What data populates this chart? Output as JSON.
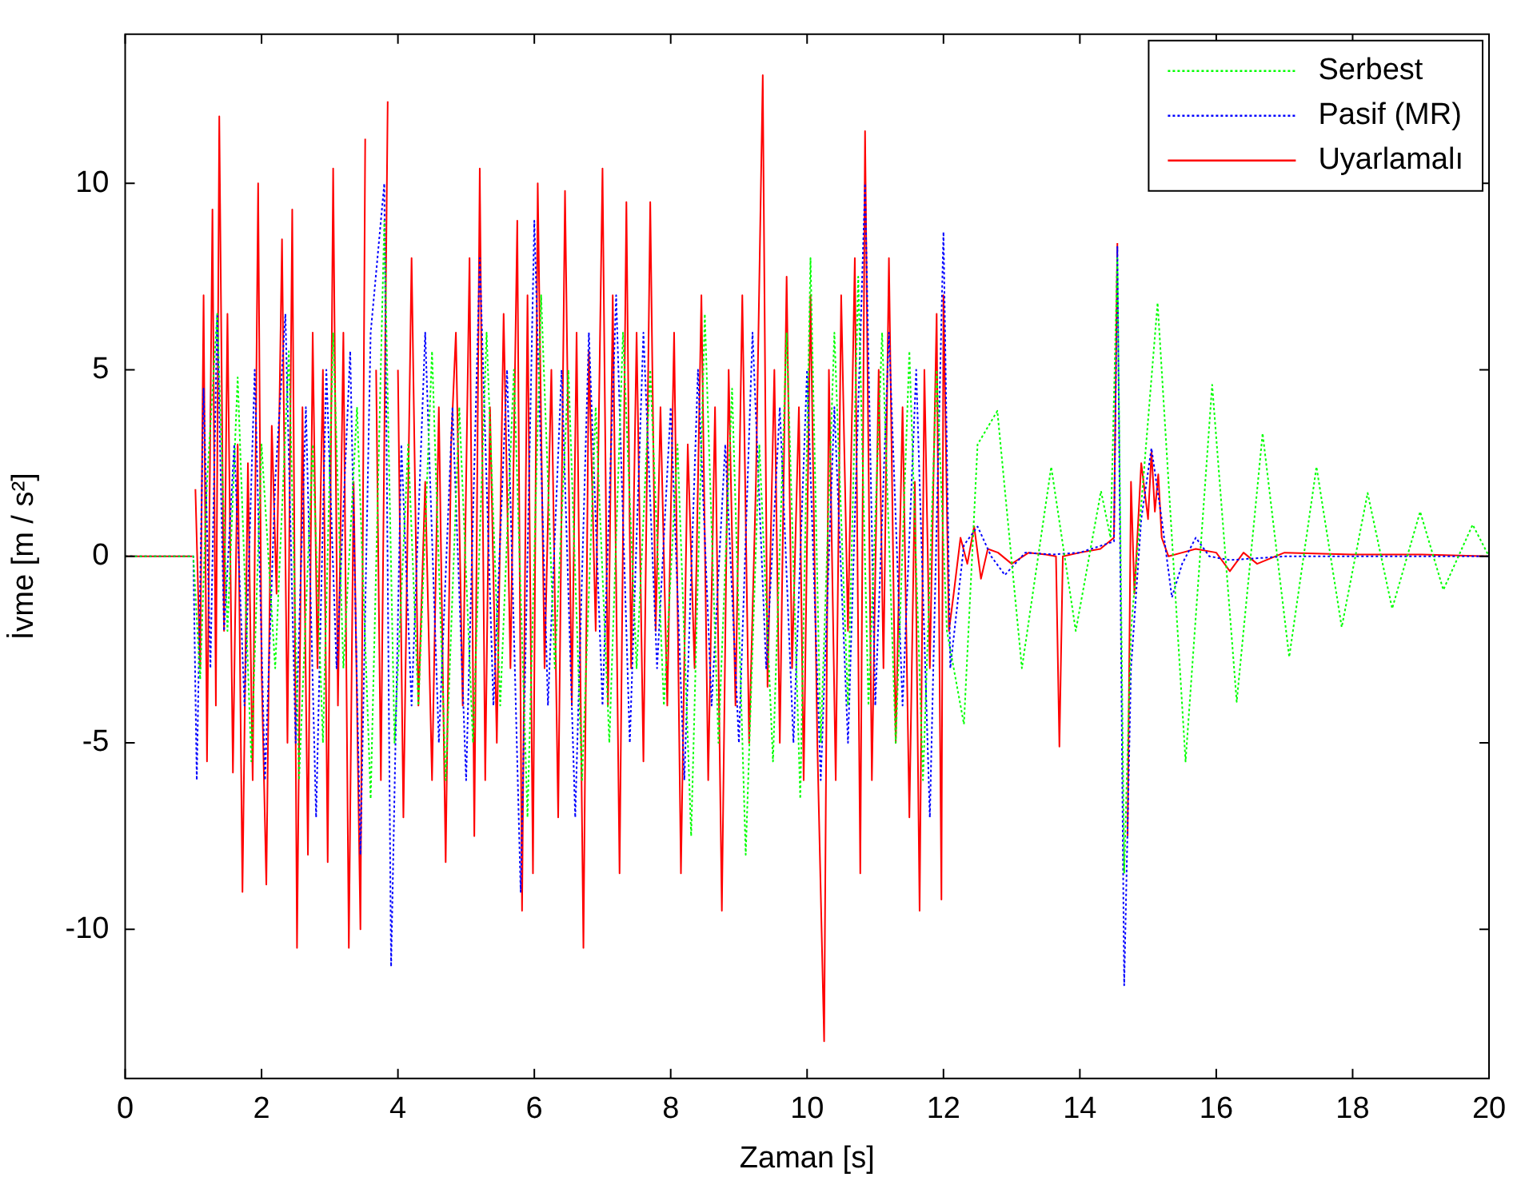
{
  "chart_data": {
    "type": "line",
    "xlabel": "Zaman [s]",
    "ylabel": "İvme [m / s²]",
    "xlim": [
      0,
      20
    ],
    "xticks": [
      0,
      2,
      4,
      6,
      8,
      10,
      12,
      14,
      16,
      18,
      20
    ],
    "ylim": [
      -14,
      14
    ],
    "yticks": [
      -10,
      -5,
      0,
      5,
      10
    ],
    "grid": false,
    "legend": "top right",
    "marker": "none",
    "series": [
      {
        "name": "Serbest",
        "color": "#00ff00",
        "line_style": "dotted",
        "x": [
          0,
          1.0,
          1.1,
          1.2,
          1.35,
          1.5,
          1.65,
          1.85,
          2.0,
          2.2,
          2.4,
          2.55,
          2.75,
          2.9,
          3.05,
          3.2,
          3.4,
          3.6,
          3.8,
          3.95,
          4.15,
          4.3,
          4.5,
          4.7,
          4.9,
          5.1,
          5.3,
          5.5,
          5.7,
          5.9,
          6.1,
          6.3,
          6.5,
          6.7,
          6.9,
          7.1,
          7.3,
          7.5,
          7.7,
          7.9,
          8.1,
          8.3,
          8.5,
          8.7,
          8.9,
          9.1,
          9.3,
          9.5,
          9.7,
          9.9,
          10.05,
          10.2,
          10.4,
          10.6,
          10.75,
          10.9,
          11.1,
          11.3,
          11.5,
          11.7,
          11.9,
          12.05,
          12.3,
          12.5,
          12.79,
          13.15,
          13.58,
          13.94,
          14.31,
          14.45,
          14.55,
          14.65,
          14.75,
          15.14,
          15.55,
          15.94,
          16.3,
          16.68,
          17.07,
          17.47,
          17.84,
          18.22,
          18.58,
          18.99,
          19.33,
          19.76,
          20
        ],
        "values": [
          0,
          0,
          -3.3,
          2,
          6.5,
          -2,
          4.8,
          -5.5,
          3,
          -3,
          5.5,
          -6,
          3,
          -5,
          6,
          -3,
          4,
          -6.5,
          9,
          -5,
          3,
          -4,
          5.5,
          -6,
          4,
          -5,
          6,
          -4,
          5,
          -7,
          7,
          -3,
          5,
          -6,
          4,
          -5,
          6,
          -3,
          5,
          -4,
          3,
          -7.5,
          6.5,
          -5,
          4.5,
          -8,
          3,
          -5.5,
          6,
          -6.5,
          8,
          -5,
          6,
          -4,
          7.5,
          -4,
          6,
          -5,
          5.5,
          -6,
          5,
          -2,
          -4.5,
          3,
          3.9,
          -3,
          2.4,
          -2,
          1.75,
          0.5,
          8,
          -8.5,
          -2,
          6.8,
          -5.5,
          4.6,
          -3.9,
          3.3,
          -2.7,
          2.4,
          -1.9,
          1.7,
          -1.4,
          1.2,
          -0.9,
          0.85,
          0
        ]
      },
      {
        "name": "Pasif (MR)",
        "color": "#0000ff",
        "line_style": "dotted",
        "x": [
          0,
          1.0,
          1.05,
          1.15,
          1.25,
          1.35,
          1.45,
          1.6,
          1.75,
          1.9,
          2.05,
          2.2,
          2.35,
          2.5,
          2.65,
          2.8,
          2.95,
          3.1,
          3.3,
          3.45,
          3.6,
          3.8,
          3.9,
          4.05,
          4.2,
          4.4,
          4.6,
          4.8,
          5.0,
          5.2,
          5.4,
          5.6,
          5.8,
          6.0,
          6.2,
          6.4,
          6.6,
          6.8,
          7.0,
          7.2,
          7.4,
          7.6,
          7.8,
          8.0,
          8.2,
          8.4,
          8.6,
          8.8,
          9.0,
          9.2,
          9.4,
          9.6,
          9.8,
          10.0,
          10.2,
          10.4,
          10.6,
          10.85,
          11.0,
          11.2,
          11.4,
          11.6,
          11.8,
          12.0,
          12.1,
          12.3,
          12.5,
          12.7,
          12.9,
          13.2,
          13.6,
          14.0,
          14.5,
          14.55,
          14.65,
          14.75,
          14.9,
          15.05,
          15.2,
          15.35,
          15.5,
          15.7,
          15.9,
          16.2,
          17,
          18,
          20
        ],
        "values": [
          0,
          0,
          -6,
          4.5,
          -3,
          6.5,
          -2,
          3,
          -4,
          5,
          -6,
          2,
          6.5,
          -5,
          4,
          -7,
          5,
          -3,
          5.5,
          -8,
          6,
          10,
          -11,
          3,
          -4,
          6,
          -5,
          4,
          -6,
          8,
          -4,
          5,
          -9,
          9,
          -4,
          5,
          -7,
          6,
          -4,
          7,
          -5,
          6,
          -3,
          4,
          -6,
          5,
          -4,
          3,
          -5,
          6,
          -3,
          4,
          -5,
          5,
          -6,
          4,
          -5,
          10,
          -4,
          6,
          -4,
          5,
          -7,
          8.7,
          -3,
          0.3,
          0.8,
          0,
          -0.5,
          0.1,
          0.05,
          0.1,
          0.4,
          8.3,
          -11.5,
          -3,
          1,
          2.9,
          1,
          -1.1,
          -0.2,
          0.5,
          0,
          -0.1,
          0,
          0,
          0
        ]
      },
      {
        "name": "Uyarlamalı",
        "color": "#ff0000",
        "line_style": "solid",
        "x": [
          0,
          0.98,
          1.0,
          1.03,
          1.1,
          1.15,
          1.2,
          1.28,
          1.33,
          1.38,
          1.45,
          1.5,
          1.58,
          1.65,
          1.72,
          1.8,
          1.87,
          1.95,
          2.0,
          2.07,
          2.15,
          2.22,
          2.3,
          2.38,
          2.45,
          2.52,
          2.6,
          2.68,
          2.75,
          2.82,
          2.9,
          2.97,
          3.05,
          3.12,
          3.2,
          3.28,
          3.35,
          3.45,
          3.52,
          3.6,
          3.68,
          3.75,
          3.85,
          3.92,
          4.0,
          4.08,
          4.2,
          4.3,
          4.4,
          4.5,
          4.6,
          4.7,
          4.78,
          4.85,
          4.95,
          5.05,
          5.12,
          5.2,
          5.28,
          5.35,
          5.45,
          5.55,
          5.65,
          5.75,
          5.82,
          5.9,
          5.98,
          6.05,
          6.15,
          6.25,
          6.35,
          6.45,
          6.55,
          6.62,
          6.72,
          6.8,
          6.9,
          7.0,
          7.08,
          7.15,
          7.25,
          7.35,
          7.42,
          7.5,
          7.6,
          7.7,
          7.78,
          7.85,
          7.95,
          8.05,
          8.15,
          8.25,
          8.35,
          8.45,
          8.55,
          8.65,
          8.75,
          8.85,
          8.95,
          9.05,
          9.15,
          9.25,
          9.35,
          9.42,
          9.52,
          9.6,
          9.7,
          9.78,
          9.88,
          9.95,
          10.05,
          10.15,
          10.25,
          10.32,
          10.42,
          10.5,
          10.6,
          10.7,
          10.78,
          10.85,
          10.95,
          11.05,
          11.12,
          11.2,
          11.3,
          11.4,
          11.5,
          11.58,
          11.65,
          11.72,
          11.8,
          11.9,
          11.97,
          12.0,
          12.08,
          12.15,
          12.25,
          12.35,
          12.45,
          12.55,
          12.65,
          12.8,
          13.0,
          13.25,
          13.5,
          13.65,
          13.7,
          13.75,
          14.0,
          14.3,
          14.5,
          14.55,
          14.63,
          14.7,
          14.75,
          14.8,
          14.9,
          15.0,
          15.05,
          15.1,
          15.15,
          15.2,
          15.3,
          15.5,
          15.7,
          16.0,
          16.2,
          16.4,
          16.6,
          17,
          18,
          19,
          20
        ],
        "values": [
          0,
          0,
          null,
          1.8,
          -3,
          7,
          -5.5,
          9.3,
          -4,
          11.8,
          -2,
          6.5,
          -5.8,
          3,
          -9,
          2.5,
          -6,
          10,
          -3,
          -8.8,
          3.5,
          -1,
          8.5,
          -5,
          9.3,
          -10.5,
          4,
          -8,
          6,
          -3,
          5,
          -8.2,
          10.4,
          -4,
          6,
          -10.5,
          2,
          -10,
          11.2,
          null,
          5,
          -6,
          12.2,
          null,
          5,
          -7,
          8,
          -4,
          2,
          -6,
          4,
          -8.2,
          3,
          6,
          -4,
          8,
          -7.5,
          10.4,
          -6,
          4,
          -5,
          6.5,
          -3,
          9,
          -9.5,
          7,
          -8.5,
          10,
          -3,
          5,
          -7,
          9.8,
          -4,
          6,
          -10.5,
          5.5,
          -2,
          10.4,
          -4,
          7,
          -8.5,
          9.5,
          -3,
          6,
          -5.5,
          9.5,
          -2,
          4,
          -4,
          6,
          -8.5,
          3,
          -3,
          7,
          -6,
          4,
          -9.5,
          5,
          -4,
          7,
          -5,
          2,
          12.9,
          -3.5,
          5,
          -5,
          7.5,
          -3,
          4,
          -6,
          7,
          -5,
          -13,
          5,
          -6,
          7,
          -2,
          8,
          -8.5,
          11.4,
          -6,
          5,
          -3,
          8,
          -5,
          4,
          -7,
          2,
          -9.5,
          5,
          -3,
          6.5,
          -9.2,
          7,
          -2,
          -1,
          0.5,
          -0.2,
          0.8,
          -0.6,
          0.2,
          0.1,
          -0.2,
          0.1,
          0.05,
          0,
          -5.1,
          0,
          0.1,
          0.2,
          0.5,
          8.4,
          null,
          -7.5,
          2,
          -1,
          2.5,
          1,
          2.8,
          1.2,
          2.2,
          0.5,
          0,
          0.1,
          0.2,
          0.1,
          -0.4,
          0.1,
          -0.2,
          0.1,
          0.05,
          0.05,
          0
        ]
      }
    ]
  }
}
